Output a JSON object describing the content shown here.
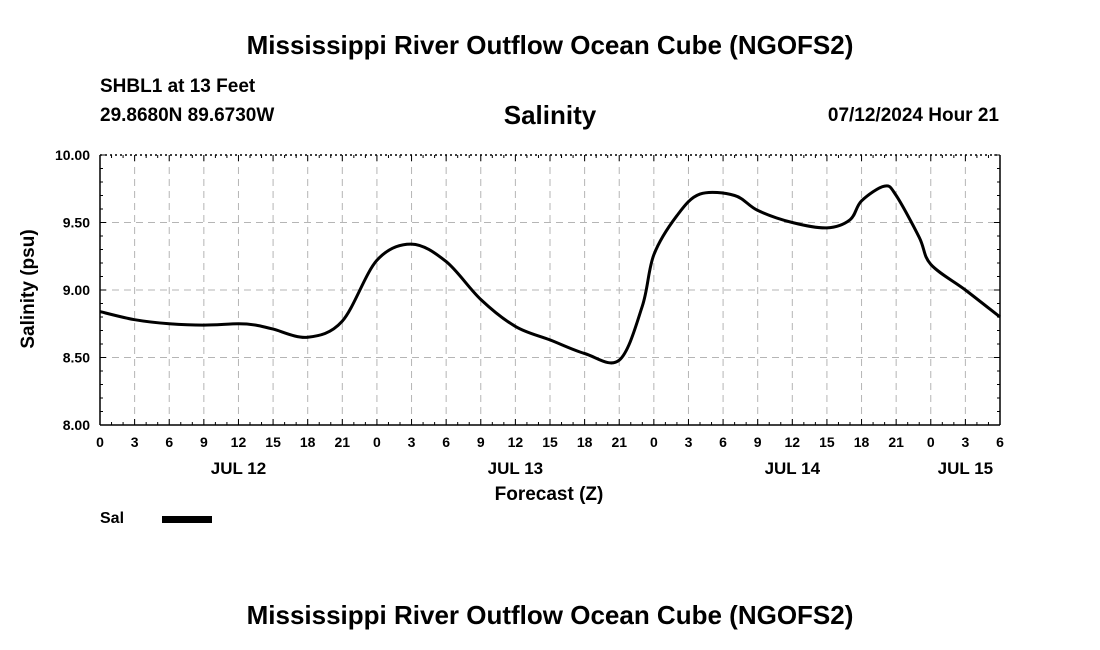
{
  "header": {
    "title": "Mississippi River Outflow Ocean Cube (NGOFS2)",
    "station": "SHBL1 at 13 Feet",
    "coords": "29.8680N  89.6730W",
    "subtitle": "Salinity",
    "datetime": "07/12/2024 Hour 21"
  },
  "footer": {
    "title": "Mississippi River Outflow Ocean Cube (NGOFS2)"
  },
  "legend": {
    "label": "Sal",
    "color": "#000000"
  },
  "chart_data": {
    "type": "line",
    "title": "Salinity",
    "xlabel": "Forecast (Z)",
    "ylabel": "Salinity (psu)",
    "ylim": [
      8.0,
      10.0
    ],
    "xlim_hours": [
      0,
      78
    ],
    "grid": true,
    "y_ticks": [
      "8.00",
      "8.50",
      "9.00",
      "9.50",
      "10.00"
    ],
    "y_tick_values": [
      8.0,
      8.5,
      9.0,
      9.5,
      10.0
    ],
    "x_tick_labels": [
      "0",
      "3",
      "6",
      "9",
      "12",
      "15",
      "18",
      "21",
      "0",
      "3",
      "6",
      "9",
      "12",
      "15",
      "18",
      "21",
      "0",
      "3",
      "6",
      "9",
      "12",
      "15",
      "18",
      "21",
      "0",
      "3",
      "6"
    ],
    "date_labels": [
      {
        "hour": 12,
        "label": "JUL 12"
      },
      {
        "hour": 36,
        "label": "JUL 13"
      },
      {
        "hour": 60,
        "label": "JUL 14"
      },
      {
        "hour": 75,
        "label": "JUL 15"
      }
    ],
    "series": [
      {
        "name": "Sal",
        "color": "#000000",
        "x": [
          0,
          3,
          6,
          9,
          12,
          13.5,
          15,
          18,
          21,
          24,
          27,
          30,
          33,
          36,
          39,
          42,
          45,
          47,
          48,
          50,
          52,
          55,
          57,
          60,
          63,
          65,
          66,
          68,
          69,
          71,
          72,
          75,
          78
        ],
        "values": [
          8.84,
          8.78,
          8.75,
          8.74,
          8.75,
          8.74,
          8.71,
          8.65,
          8.77,
          9.22,
          9.34,
          9.21,
          8.93,
          8.73,
          8.63,
          8.53,
          8.48,
          8.88,
          9.26,
          9.55,
          9.71,
          9.7,
          9.59,
          9.5,
          9.46,
          9.52,
          9.66,
          9.77,
          9.7,
          9.39,
          9.19,
          9.0,
          8.8
        ]
      }
    ]
  }
}
